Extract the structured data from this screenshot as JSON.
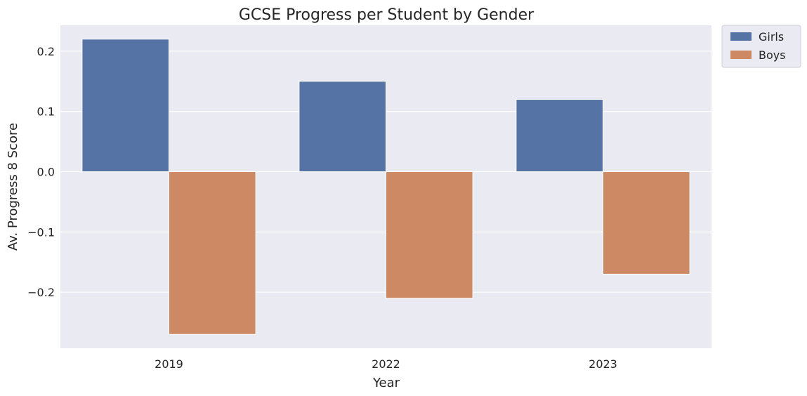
{
  "chart_data": {
    "type": "bar",
    "title": "GCSE Progress per Student by Gender",
    "xlabel": "Year",
    "ylabel": "Av. Progress 8 Score",
    "categories": [
      "2019",
      "2022",
      "2023"
    ],
    "series": [
      {
        "name": "Girls",
        "values": [
          0.22,
          0.15,
          0.12
        ],
        "color": "#5573a4"
      },
      {
        "name": "Boys",
        "values": [
          -0.27,
          -0.21,
          -0.17
        ],
        "color": "#cc8963"
      }
    ],
    "ylim": [
      -0.293,
      0.243
    ],
    "yticks": [
      0.2,
      0.1,
      0.0,
      -0.1,
      -0.2
    ],
    "ytick_labels": [
      "0.2",
      "0.1",
      "0.0",
      "−0.1",
      "−0.2"
    ],
    "grid": true,
    "plot_background": "#eaeaf2",
    "legend_position": "outside-top-right"
  }
}
